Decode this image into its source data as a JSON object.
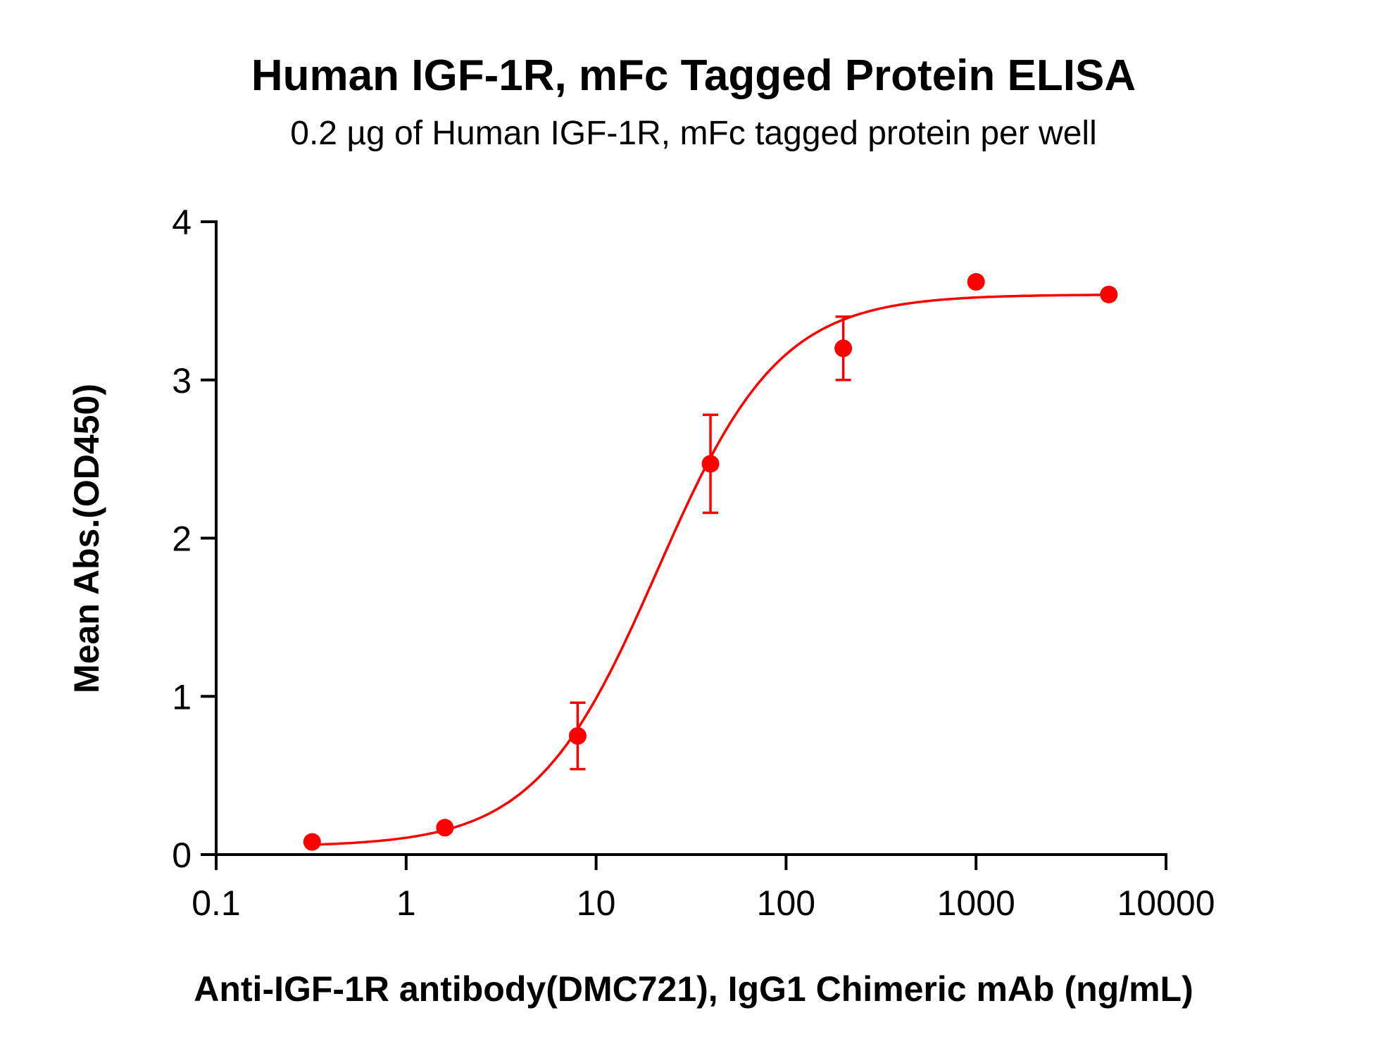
{
  "chart_data": {
    "type": "scatter",
    "title": "Human IGF-1R, mFc Tagged Protein ELISA",
    "subtitle": "0.2 µg of Human IGF-1R, mFc tagged protein per well",
    "xlabel": "Anti-IGF-1R antibody(DMC721), IgG1 Chimeric mAb (ng/mL)",
    "ylabel": "Mean Abs.(OD450)",
    "x_scale": "log",
    "xlim": [
      0.1,
      10000
    ],
    "ylim": [
      0,
      4
    ],
    "x_ticks": [
      "0.1",
      "1",
      "10",
      "100",
      "1000",
      "10000"
    ],
    "x_tick_values": [
      0.1,
      1,
      10,
      100,
      1000,
      10000
    ],
    "y_ticks": [
      "0",
      "1",
      "2",
      "3",
      "4"
    ],
    "y_tick_values": [
      0,
      1,
      2,
      3,
      4
    ],
    "grid": false,
    "color": "#ff0000",
    "series": [
      {
        "x": [
          0.32,
          1.6,
          8,
          40,
          200,
          1000,
          5000
        ],
        "y": [
          0.08,
          0.17,
          0.75,
          2.47,
          3.2,
          3.62,
          3.54
        ],
        "error": [
          0,
          0,
          0.21,
          0.31,
          0.2,
          0,
          0
        ]
      }
    ],
    "fit": {
      "model": "4PL",
      "bottom": 0.05,
      "top": 3.54,
      "ec50": 21,
      "hill": 1.35,
      "x_range": [
        0.32,
        5000
      ]
    }
  }
}
